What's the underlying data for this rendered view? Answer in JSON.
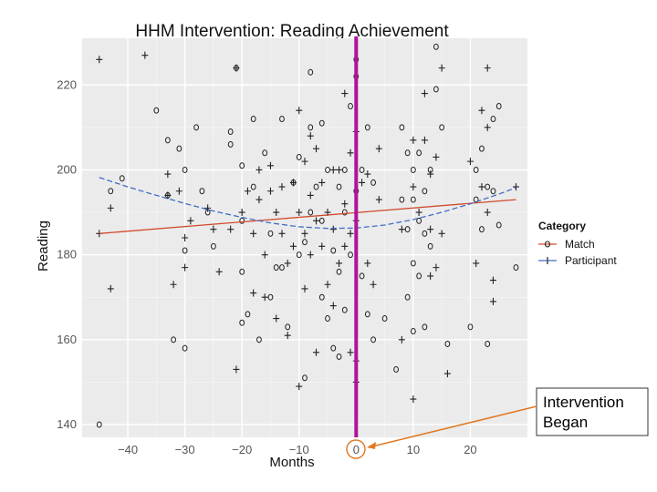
{
  "chart_data": {
    "type": "scatter",
    "title": "HHM Intervention: Reading Achievement",
    "xlabel": "Months",
    "ylabel": "Reading",
    "xlim": [
      -48,
      30
    ],
    "ylim": [
      137,
      231
    ],
    "x_ticks": [
      -40,
      -30,
      -20,
      -10,
      0,
      10,
      20
    ],
    "x_tick_labels": [
      "−40",
      "−30",
      "−20",
      "−10",
      "0",
      "10",
      "20"
    ],
    "y_ticks": [
      140,
      160,
      180,
      200,
      220
    ],
    "y_tick_labels": [
      "140",
      "160",
      "180",
      "200",
      "220"
    ],
    "grid": true,
    "legend": {
      "title": "Category",
      "position": "right",
      "entries": [
        "Match",
        "Participant"
      ]
    },
    "vline": {
      "x": 0,
      "color": "#b0139b"
    },
    "annotation": {
      "lines": [
        "Intervention",
        "Began"
      ],
      "points_to_x": 0
    },
    "series": [
      {
        "name": "Match",
        "marker": "o",
        "trend_color": "#d04a2c",
        "trend_line": [
          [
            -45,
            185.0
          ],
          [
            28,
            193.0
          ]
        ],
        "points": [
          [
            -45,
            140
          ],
          [
            -43,
            195
          ],
          [
            -41,
            198
          ],
          [
            -35,
            214
          ],
          [
            -33,
            207
          ],
          [
            -33,
            194
          ],
          [
            -32,
            160
          ],
          [
            -31,
            205
          ],
          [
            -30,
            200
          ],
          [
            -30,
            181
          ],
          [
            -30,
            158
          ],
          [
            -28,
            210
          ],
          [
            -27,
            195
          ],
          [
            -26,
            190
          ],
          [
            -25,
            182
          ],
          [
            -22,
            209
          ],
          [
            -22,
            206
          ],
          [
            -21,
            224
          ],
          [
            -20,
            201
          ],
          [
            -20,
            188
          ],
          [
            -20,
            176
          ],
          [
            -20,
            164
          ],
          [
            -19,
            166
          ],
          [
            -18,
            212
          ],
          [
            -18,
            196
          ],
          [
            -17,
            160
          ],
          [
            -16,
            204
          ],
          [
            -15,
            170
          ],
          [
            -15,
            185
          ],
          [
            -14,
            177
          ],
          [
            -13,
            212
          ],
          [
            -13,
            177
          ],
          [
            -12,
            163
          ],
          [
            -11,
            197
          ],
          [
            -10,
            203
          ],
          [
            -10,
            180
          ],
          [
            -9,
            183
          ],
          [
            -9,
            151
          ],
          [
            -8,
            223
          ],
          [
            -8,
            210
          ],
          [
            -8,
            190
          ],
          [
            -7,
            196
          ],
          [
            -6,
            211
          ],
          [
            -6,
            188
          ],
          [
            -6,
            170
          ],
          [
            -5,
            200
          ],
          [
            -5,
            165
          ],
          [
            -4,
            181
          ],
          [
            -4,
            158
          ],
          [
            -3,
            196
          ],
          [
            -3,
            176
          ],
          [
            -3,
            156
          ],
          [
            -2,
            200
          ],
          [
            -2,
            190
          ],
          [
            -2,
            167
          ],
          [
            -1,
            215
          ],
          [
            -1,
            180
          ],
          [
            0,
            226
          ],
          [
            0,
            222
          ],
          [
            0,
            195
          ],
          [
            1,
            200
          ],
          [
            1,
            175
          ],
          [
            2,
            210
          ],
          [
            2,
            166
          ],
          [
            3,
            197
          ],
          [
            3,
            160
          ],
          [
            5,
            165
          ],
          [
            7,
            153
          ],
          [
            8,
            210
          ],
          [
            8,
            193
          ],
          [
            9,
            204
          ],
          [
            9,
            186
          ],
          [
            9,
            170
          ],
          [
            10,
            200
          ],
          [
            10,
            193
          ],
          [
            10,
            178
          ],
          [
            10,
            162
          ],
          [
            11,
            204
          ],
          [
            11,
            188
          ],
          [
            11,
            175
          ],
          [
            12,
            195
          ],
          [
            12,
            185
          ],
          [
            12,
            163
          ],
          [
            13,
            200
          ],
          [
            13,
            182
          ],
          [
            14,
            219
          ],
          [
            14,
            229
          ],
          [
            15,
            210
          ],
          [
            16,
            159
          ],
          [
            20,
            163
          ],
          [
            21,
            200
          ],
          [
            21,
            193
          ],
          [
            22,
            205
          ],
          [
            22,
            186
          ],
          [
            23,
            196
          ],
          [
            23,
            159
          ],
          [
            24,
            212
          ],
          [
            24,
            195
          ],
          [
            25,
            215
          ],
          [
            25,
            187
          ],
          [
            28,
            177
          ]
        ]
      },
      {
        "name": "Participant",
        "marker": "+",
        "trend_color": "#3f6ec5",
        "trend_line": [
          [
            -45,
            198.2
          ],
          [
            -40,
            196.0
          ],
          [
            -35,
            194.0
          ],
          [
            -30,
            192.1
          ],
          [
            -25,
            190.3
          ],
          [
            -20,
            188.8
          ],
          [
            -15,
            187.5
          ],
          [
            -10,
            186.6
          ],
          [
            -5,
            186.2
          ],
          [
            0,
            186.3
          ],
          [
            5,
            187.0
          ],
          [
            10,
            188.3
          ],
          [
            15,
            190.0
          ],
          [
            20,
            192.0
          ],
          [
            25,
            194.3
          ],
          [
            28,
            195.8
          ]
        ],
        "points": [
          [
            -45,
            226
          ],
          [
            -45,
            185
          ],
          [
            -43,
            172
          ],
          [
            -43,
            191
          ],
          [
            -37,
            227
          ],
          [
            -33,
            199
          ],
          [
            -33,
            194
          ],
          [
            -32,
            173
          ],
          [
            -31,
            195
          ],
          [
            -30,
            177
          ],
          [
            -30,
            184
          ],
          [
            -29,
            188
          ],
          [
            -26,
            191
          ],
          [
            -25,
            186
          ],
          [
            -24,
            176
          ],
          [
            -22,
            186
          ],
          [
            -21,
            224
          ],
          [
            -21,
            153
          ],
          [
            -20,
            190
          ],
          [
            -19,
            195
          ],
          [
            -18,
            185
          ],
          [
            -18,
            171
          ],
          [
            -17,
            200
          ],
          [
            -17,
            193
          ],
          [
            -16,
            170
          ],
          [
            -16,
            180
          ],
          [
            -15,
            201
          ],
          [
            -15,
            195
          ],
          [
            -14,
            190
          ],
          [
            -14,
            165
          ],
          [
            -13,
            196
          ],
          [
            -13,
            185
          ],
          [
            -12,
            178
          ],
          [
            -12,
            161
          ],
          [
            -11,
            197
          ],
          [
            -11,
            182
          ],
          [
            -10,
            214
          ],
          [
            -10,
            190
          ],
          [
            -10,
            149
          ],
          [
            -9,
            202
          ],
          [
            -9,
            185
          ],
          [
            -9,
            172
          ],
          [
            -8,
            208
          ],
          [
            -8,
            194
          ],
          [
            -8,
            180
          ],
          [
            -7,
            205
          ],
          [
            -7,
            188
          ],
          [
            -7,
            157
          ],
          [
            -6,
            197
          ],
          [
            -6,
            182
          ],
          [
            -5,
            190
          ],
          [
            -5,
            173
          ],
          [
            -4,
            200
          ],
          [
            -4,
            186
          ],
          [
            -4,
            168
          ],
          [
            -3,
            200
          ],
          [
            -3,
            178
          ],
          [
            -2,
            218
          ],
          [
            -2,
            192
          ],
          [
            -2,
            182
          ],
          [
            -1,
            204
          ],
          [
            -1,
            185
          ],
          [
            -1,
            157
          ],
          [
            0,
            209
          ],
          [
            0,
            188
          ],
          [
            0,
            155
          ],
          [
            0,
            150
          ],
          [
            1,
            197
          ],
          [
            2,
            199
          ],
          [
            2,
            178
          ],
          [
            3,
            173
          ],
          [
            4,
            205
          ],
          [
            4,
            193
          ],
          [
            8,
            186
          ],
          [
            8,
            160
          ],
          [
            10,
            207
          ],
          [
            10,
            196
          ],
          [
            10,
            146
          ],
          [
            11,
            190
          ],
          [
            12,
            218
          ],
          [
            12,
            207
          ],
          [
            13,
            199
          ],
          [
            13,
            186
          ],
          [
            13,
            175
          ],
          [
            14,
            203
          ],
          [
            14,
            177
          ],
          [
            15,
            224
          ],
          [
            15,
            185
          ],
          [
            16,
            152
          ],
          [
            20,
            202
          ],
          [
            21,
            178
          ],
          [
            22,
            214
          ],
          [
            22,
            196
          ],
          [
            23,
            224
          ],
          [
            23,
            210
          ],
          [
            23,
            190
          ],
          [
            24,
            174
          ],
          [
            24,
            169
          ],
          [
            28,
            196
          ]
        ]
      }
    ]
  }
}
